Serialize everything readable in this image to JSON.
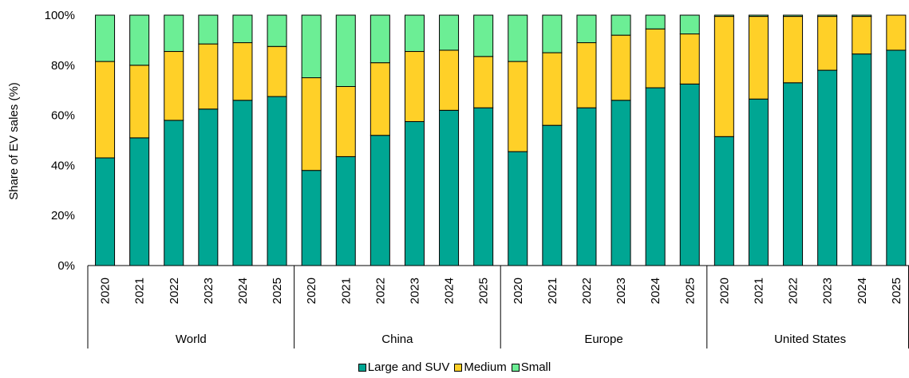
{
  "chart_data": {
    "type": "bar",
    "stacked": true,
    "ylabel": "Share of EV sales (%)",
    "ylim": [
      0,
      100
    ],
    "yticks": [
      "0%",
      "20%",
      "40%",
      "60%",
      "80%",
      "100%"
    ],
    "groups": [
      {
        "name": "World",
        "years": [
          "2020",
          "2021",
          "2022",
          "2023",
          "2024",
          "2025"
        ]
      },
      {
        "name": "China",
        "years": [
          "2020",
          "2021",
          "2022",
          "2023",
          "2024",
          "2025"
        ]
      },
      {
        "name": "Europe",
        "years": [
          "2020",
          "2021",
          "2022",
          "2023",
          "2024",
          "2025"
        ]
      },
      {
        "name": "United States",
        "years": [
          "2020",
          "2021",
          "2022",
          "2023",
          "2024",
          "2025"
        ]
      }
    ],
    "series": [
      {
        "name": "Large and SUV",
        "color": "#00A693",
        "values": [
          43,
          51,
          58,
          62.5,
          66,
          67.5,
          38,
          43.5,
          52,
          57.5,
          62,
          63,
          45.5,
          56,
          63,
          66,
          71,
          72.5,
          51.5,
          66.5,
          73,
          78,
          84.5,
          86
        ]
      },
      {
        "name": "Medium",
        "color": "#FFD028",
        "values": [
          38.5,
          29,
          27.5,
          26,
          23,
          20,
          37,
          28,
          29,
          28,
          24,
          20.5,
          36,
          29,
          26,
          26,
          23.5,
          20,
          48,
          33,
          26.5,
          21.5,
          15,
          14
        ]
      },
      {
        "name": "Small",
        "color": "#6CEE95",
        "values": [
          18.5,
          20,
          14.5,
          11.5,
          11,
          12.5,
          25,
          28.5,
          19,
          14.5,
          14,
          16.5,
          18.5,
          15,
          11,
          8,
          5.5,
          7.5,
          0.5,
          0.5,
          0.5,
          0.5,
          0.5,
          0
        ]
      }
    ],
    "legend_position": "bottom",
    "grid": false
  }
}
